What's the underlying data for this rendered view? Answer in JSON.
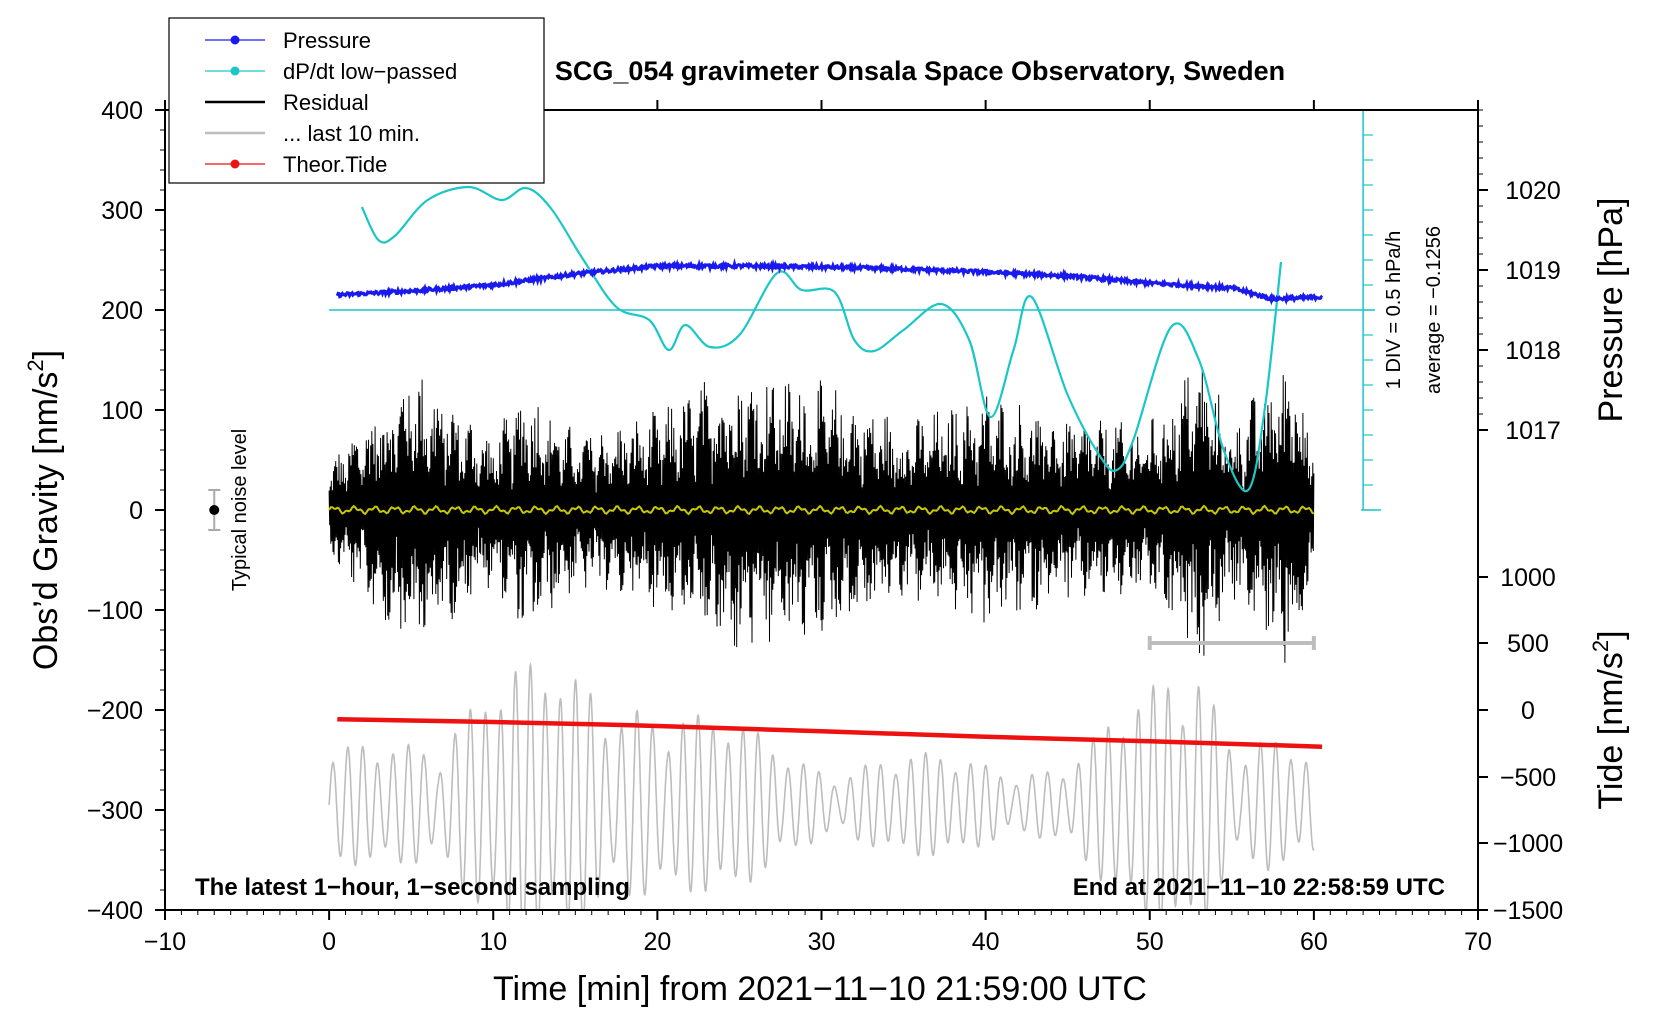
{
  "chart_data": {
    "type": "line",
    "title": "SCG_054 gravimeter Onsala Space Observatory, Sweden",
    "xlabel": "Time [min] from 2021−11−10 21:59:00 UTC",
    "ylabel_left": "Obs'd Gravity [nm/s2]",
    "ylabel_left_main": "Obs’d Gravity [nm/s",
    "ylabel_left_sup": "2",
    "ylabel_left_end": "]",
    "ylabel_pressure": "Pressure [hPa]",
    "ylabel_tide_main": "Tide [nm/s",
    "ylabel_tide_sup": "2",
    "ylabel_tide_end": "]",
    "xlim": [
      -10,
      70
    ],
    "ylim": [
      -400,
      400
    ],
    "x_ticks": [
      "−10",
      "0",
      "10",
      "20",
      "30",
      "40",
      "50",
      "60",
      "70"
    ],
    "x_tick_values": [
      -10,
      0,
      10,
      20,
      30,
      40,
      50,
      60,
      70
    ],
    "y_ticks": [
      "400",
      "300",
      "200",
      "100",
      "0",
      "−100",
      "−200",
      "−300",
      "−400"
    ],
    "y_tick_values": [
      400,
      300,
      200,
      100,
      0,
      -100,
      -200,
      -300,
      -400
    ],
    "pressure_axis": {
      "ticks": [
        "1020",
        "1019",
        "1018",
        "1017"
      ],
      "values": [
        1020,
        1019,
        1018,
        1017
      ],
      "gravity_equiv": [
        320,
        240,
        160,
        80
      ]
    },
    "tide_axis": {
      "ticks": [
        "1000",
        "500",
        "0",
        "−500",
        "−1000",
        "−1500"
      ],
      "values": [
        1000,
        500,
        0,
        -500,
        -1000,
        -1500
      ],
      "gravity_equiv": [
        -67,
        -133,
        -200,
        -267,
        -333,
        -400
      ]
    },
    "dpdt_scale": {
      "label_div": "1 DIV = 0.5 hPa/h",
      "label_avg": "average = −0.1256",
      "zero_level": 200,
      "x_position": 63
    },
    "noise_indicator": {
      "label": "Typical noise level",
      "x": -7,
      "y": 0,
      "half_range": 20
    },
    "last10_bracket": {
      "x_start": 50,
      "x_end": 60,
      "y": -133
    },
    "annotations": {
      "bottom_left": "The latest 1−hour, 1−second sampling",
      "bottom_right": "End at 2021−11−10 22:58:59 UTC"
    },
    "legend": [
      {
        "label": "Pressure",
        "color": "#1a1aee",
        "marker": true
      },
      {
        "label": "dP/dt low−passed",
        "color": "#1ac6c6",
        "marker": true
      },
      {
        "label": "Residual",
        "color": "#000000",
        "marker": false
      },
      {
        "label": "... last 10 min.",
        "color": "#bdbdbd",
        "marker": false
      },
      {
        "label": "Theor.Tide",
        "color": "#ee1111",
        "marker": true
      }
    ],
    "series": [
      {
        "name": "Pressure",
        "color": "#1a1aee",
        "axis": "gravity",
        "x": [
          0.5,
          5,
          10,
          15,
          20,
          25,
          30,
          35,
          40,
          45,
          50,
          55,
          57.5,
          60.5
        ],
        "y": [
          215,
          219,
          225,
          236,
          244,
          244,
          243,
          241,
          238,
          234,
          227,
          222,
          211,
          213
        ]
      },
      {
        "name": "dP/dt low-passed",
        "color": "#1ac6c6",
        "axis": "gravity",
        "x": [
          2,
          3,
          4,
          6,
          8.5,
          10.5,
          12,
          13.5,
          15.5,
          17.5,
          19.5,
          20.7,
          21.7,
          23.2,
          25,
          27.3,
          28.8,
          30.8,
          32,
          33.2,
          35,
          37.3,
          39,
          40.3,
          41.7,
          42.8,
          45,
          47,
          48,
          49,
          51.3,
          53,
          54.5,
          56,
          57,
          58
        ],
        "y": [
          303,
          270,
          274,
          310,
          323,
          310,
          322,
          302,
          250,
          203,
          190,
          160,
          185,
          163,
          175,
          237,
          220,
          218,
          170,
          159,
          180,
          206,
          170,
          93,
          160,
          213,
          115,
          53,
          40,
          70,
          183,
          150,
          60,
          20,
          100,
          248
        ]
      },
      {
        "name": "Residual",
        "color": "#000000",
        "axis": "gravity",
        "envelope_x": [
          0,
          5,
          10,
          12,
          15,
          20,
          24.5,
          30,
          35,
          40,
          45,
          50,
          53,
          55,
          59,
          60
        ],
        "envelope_y": [
          50,
          150,
          75,
          130,
          80,
          100,
          150,
          130,
          90,
          120,
          95,
          90,
          160,
          90,
          170,
          60
        ]
      },
      {
        "name": "Residual low-passed",
        "color": "#c8c800",
        "axis": "gravity",
        "x": [
          0,
          60
        ],
        "y": [
          0,
          0
        ]
      },
      {
        "name": "... last 10 min.",
        "color": "#bdbdbd",
        "axis": "gravity",
        "center": -295,
        "envelope_x": [
          0,
          5,
          10,
          15,
          18,
          22,
          30,
          40,
          45,
          50,
          53,
          55,
          60
        ],
        "envelope_y": [
          40,
          75,
          110,
          120,
          135,
          80,
          45,
          40,
          45,
          95,
          150,
          95,
          40
        ]
      },
      {
        "name": "Theor.Tide",
        "color": "#ee1111",
        "axis": "tide",
        "x": [
          0.5,
          10,
          20,
          30,
          40,
          50,
          60.5
        ],
        "y": [
          -70,
          -90,
          -120,
          -160,
          -200,
          -235,
          -275
        ]
      }
    ]
  }
}
